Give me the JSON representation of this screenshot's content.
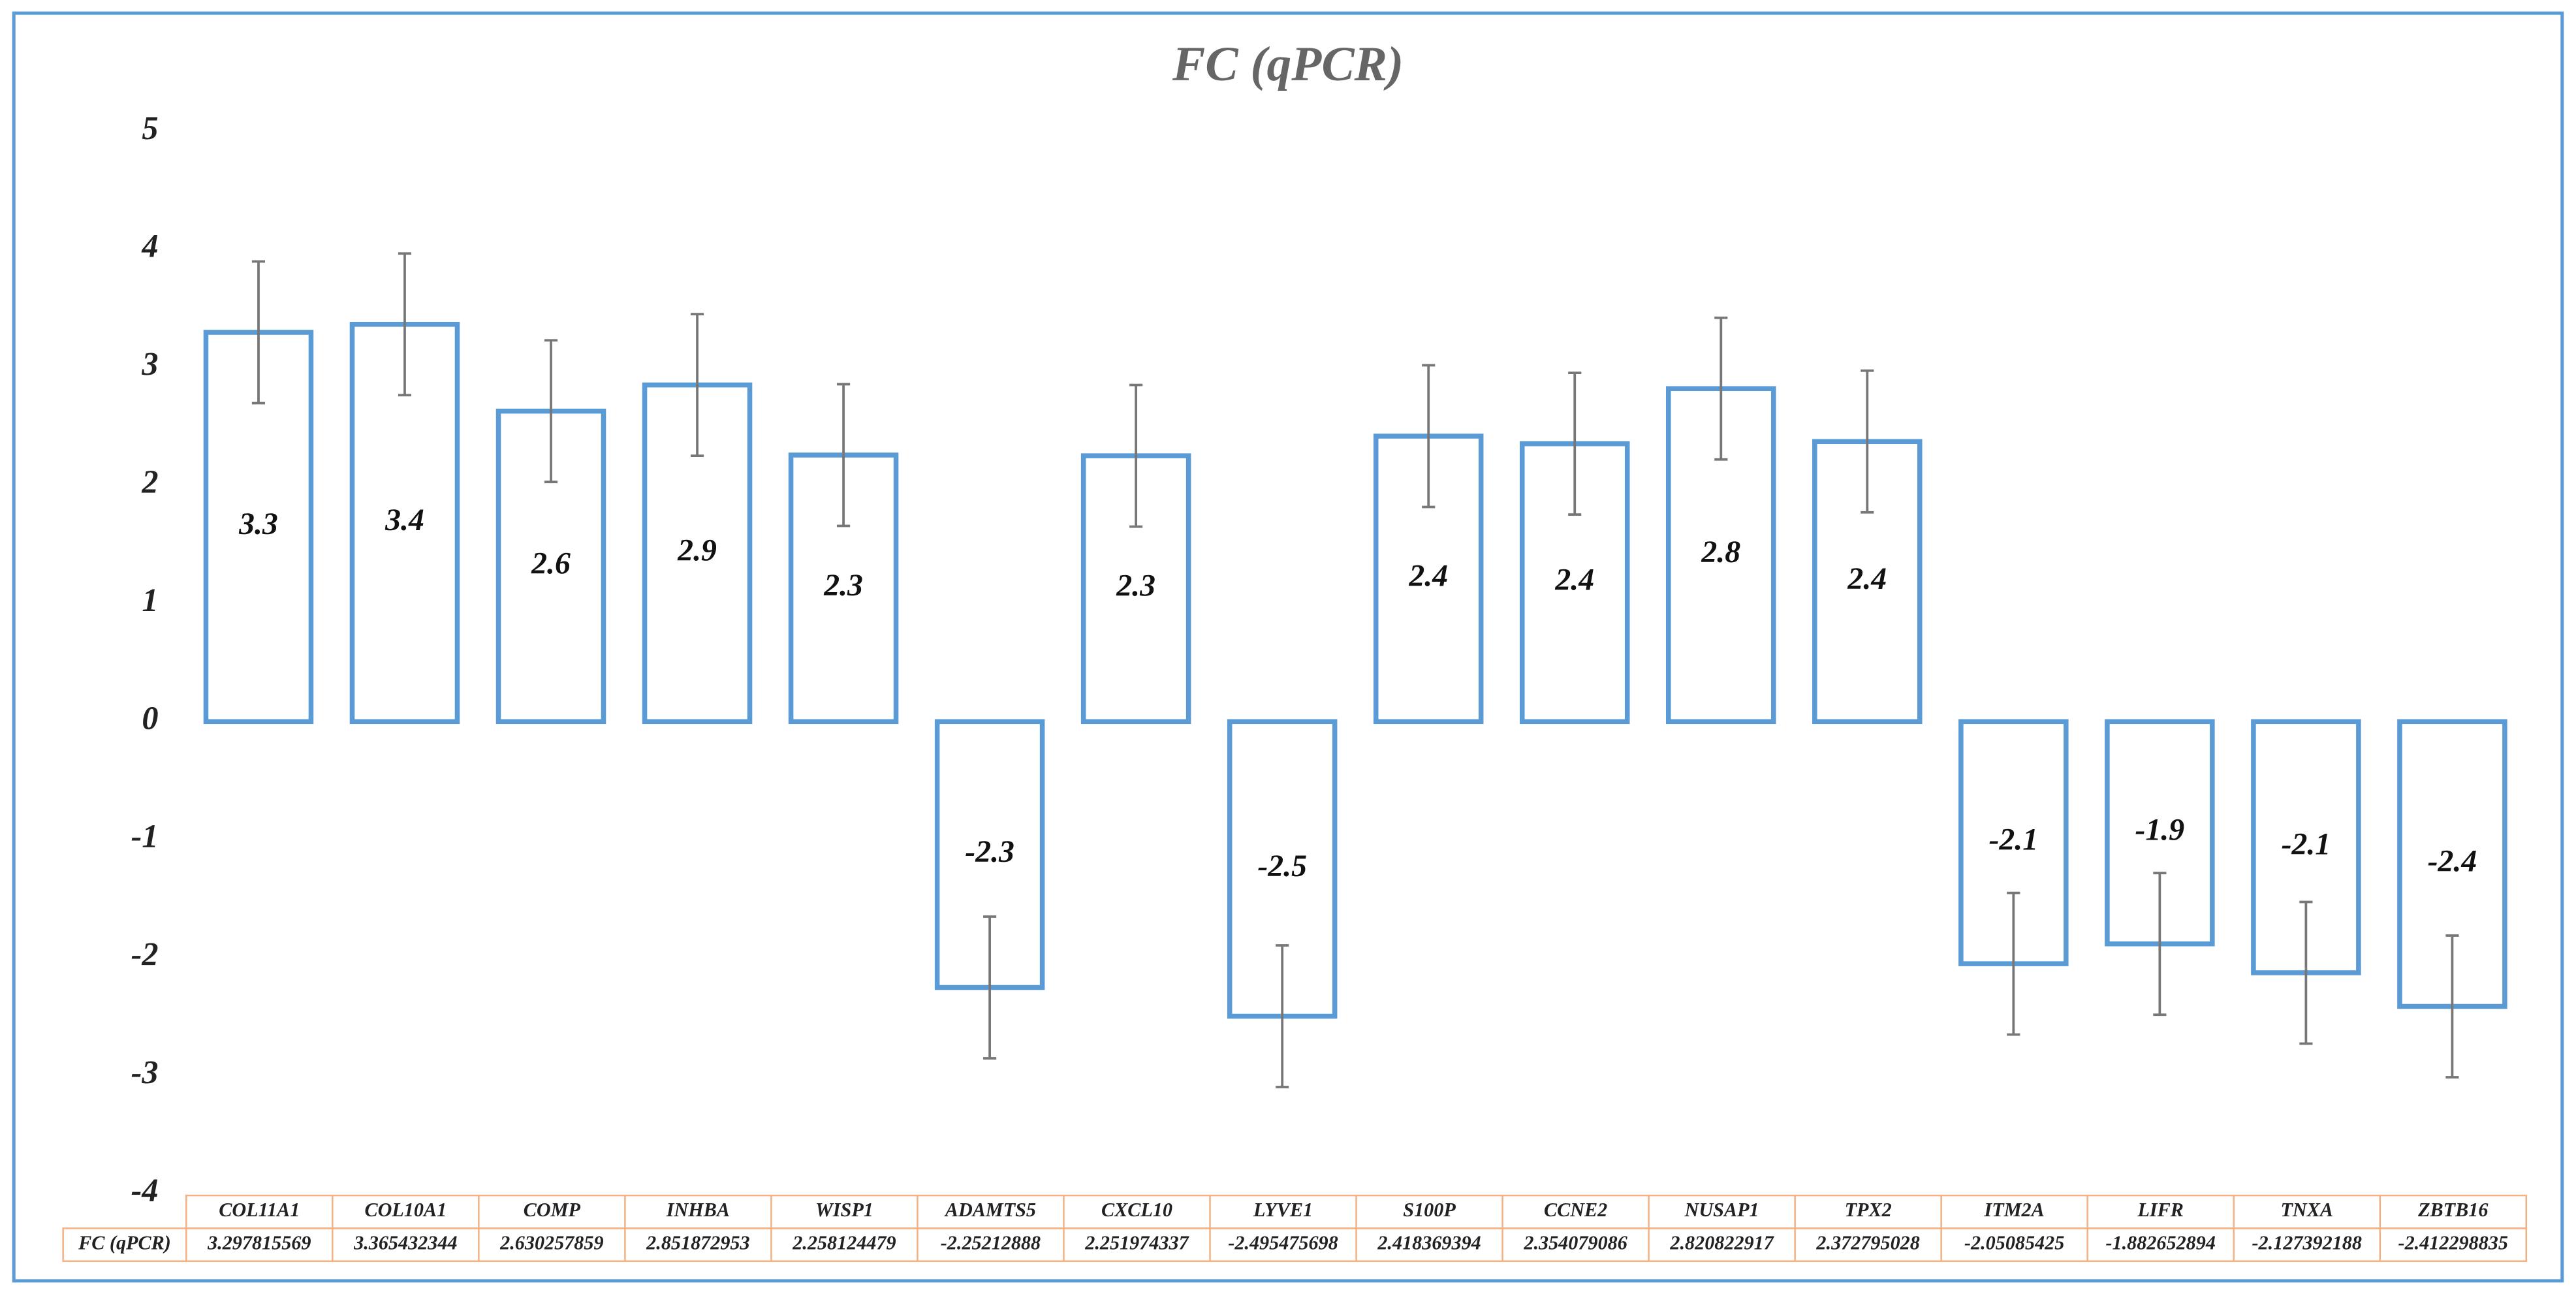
{
  "chart_data": {
    "type": "bar",
    "title": "FC (qPCR)",
    "categories": [
      "COL11A1",
      "COL10A1",
      "COMP",
      "INHBA",
      "WISP1",
      "ADAMTS5",
      "CXCL10",
      "LYVE1",
      "S100P",
      "CCNE2",
      "NUSAP1",
      "TPX2",
      "ITM2A",
      "LIFR",
      "TNXA",
      "ZBTB16"
    ],
    "series": [
      {
        "name": "FC (qPCR)",
        "color": "#5b9bd5",
        "values": [
          3.297815569,
          3.365432344,
          2.630257859,
          2.851872953,
          2.258124479,
          -2.25212888,
          2.251974337,
          -2.495475698,
          2.418369394,
          2.354079086,
          2.820822917,
          2.372795028,
          -2.05085425,
          -1.882652894,
          -2.127392188,
          -2.412298835
        ],
        "value_labels": [
          "3.3",
          "3.4",
          "2.6",
          "2.9",
          "2.3",
          "-2.3",
          "2.3",
          "-2.5",
          "2.4",
          "2.4",
          "2.8",
          "2.4",
          "-2.1",
          "-1.9",
          "-2.1",
          "-2.4"
        ],
        "errors": [
          0.6,
          0.6,
          0.6,
          0.6,
          0.6,
          0.6,
          0.6,
          0.6,
          0.6,
          0.6,
          0.6,
          0.6,
          0.6,
          0.6,
          0.6,
          0.6
        ]
      }
    ],
    "ylim": [
      -4,
      5
    ],
    "yticks": [
      5,
      4,
      3,
      2,
      1,
      0,
      -1,
      -2,
      -3,
      -4
    ],
    "grid": false
  }
}
